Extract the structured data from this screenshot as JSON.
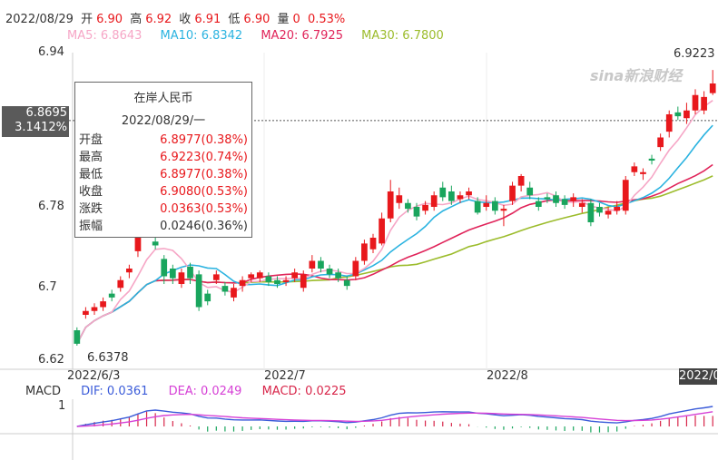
{
  "header": {
    "date": "2022/08/29",
    "open_label": "开",
    "open": "6.90",
    "high_label": "高",
    "high": "6.92",
    "close_label": "收",
    "close": "6.91",
    "low_label": "低",
    "low": "6.90",
    "vol_label": "量",
    "vol": "0",
    "change": "0.53%"
  },
  "ma": {
    "ma5": "MA5: 6.8643",
    "ma10": "MA10: 6.8342",
    "ma20": "MA20: 6.7925",
    "ma30": "MA30: 6.7800",
    "colors": {
      "ma5": "#f6a6c6",
      "ma10": "#2bb3e0",
      "ma20": "#e0245a",
      "ma30": "#9cbc2c"
    }
  },
  "watermark": "sina新浪财经",
  "crosshair": {
    "price": "6.8695",
    "pct": "3.1412%"
  },
  "tooltip": {
    "title": "在岸人民币",
    "date": "2022/08/29/一",
    "rows": [
      {
        "label": "开盘",
        "value": "6.8977(0.38%)",
        "red": true
      },
      {
        "label": "最高",
        "value": "6.9223(0.74%)",
        "red": true
      },
      {
        "label": "最低",
        "value": "6.8977(0.38%)",
        "red": true
      },
      {
        "label": "收盘",
        "value": "6.9080(0.53%)",
        "red": true
      },
      {
        "label": "涨跌",
        "value": "0.0363(0.53%)",
        "red": true
      },
      {
        "label": "振幅",
        "value": "0.0246(0.36%)",
        "red": false
      }
    ]
  },
  "macd": {
    "label": "MACD",
    "dif": "DIF: 0.0361",
    "dea": "DEA: 0.0249",
    "macd": "MACD: 0.0225",
    "colors": {
      "dif": "#3a5bd9",
      "dea": "#d640d6",
      "macd": "#d8264a"
    }
  },
  "date_box": "2022/0",
  "chart_data": {
    "type": "candlestick",
    "title": "",
    "ylim": [
      6.62,
      6.94
    ],
    "yticks": [
      "6.94",
      "6.78",
      "6.7",
      "6.62"
    ],
    "xticks": [
      "2022/6/3",
      "2022/7",
      "2022/8"
    ],
    "annotations": {
      "high": "6.9223",
      "low": "6.6378"
    },
    "macd_axis": [
      "1"
    ],
    "candles": [
      [
        6.652,
        6.638,
        6.655,
        6.636
      ],
      [
        6.668,
        6.672,
        6.676,
        6.664
      ],
      [
        6.672,
        6.676,
        6.68,
        6.668
      ],
      [
        6.676,
        6.682,
        6.686,
        6.672
      ],
      [
        6.69,
        6.686,
        6.694,
        6.682
      ],
      [
        6.696,
        6.704,
        6.708,
        6.692
      ],
      [
        6.712,
        6.716,
        6.72,
        6.706
      ],
      [
        6.734,
        6.754,
        6.76,
        6.728
      ],
      [
        6.758,
        6.766,
        6.778,
        6.752
      ],
      [
        6.744,
        6.74,
        6.748,
        6.736
      ],
      [
        6.726,
        6.708,
        6.73,
        6.7
      ],
      [
        6.716,
        6.706,
        6.72,
        6.7
      ],
      [
        6.7,
        6.712,
        6.716,
        6.696
      ],
      [
        6.718,
        6.706,
        6.722,
        6.7
      ],
      [
        6.71,
        6.676,
        6.714,
        6.672
      ],
      [
        6.69,
        6.682,
        6.694,
        6.678
      ],
      [
        6.704,
        6.71,
        6.714,
        6.7
      ],
      [
        6.698,
        6.692,
        6.702,
        6.688
      ],
      [
        6.686,
        6.696,
        6.7,
        6.682
      ],
      [
        6.698,
        6.704,
        6.708,
        6.692
      ],
      [
        6.706,
        6.71,
        6.712,
        6.702
      ],
      [
        6.706,
        6.712,
        6.714,
        6.702
      ],
      [
        6.708,
        6.702,
        6.712,
        6.698
      ],
      [
        6.704,
        6.7,
        6.708,
        6.696
      ],
      [
        6.702,
        6.704,
        6.708,
        6.698
      ],
      [
        6.706,
        6.712,
        6.716,
        6.702
      ],
      [
        6.696,
        6.71,
        6.714,
        6.692
      ],
      [
        6.716,
        6.724,
        6.73,
        6.712
      ],
      [
        6.724,
        6.716,
        6.728,
        6.712
      ],
      [
        6.716,
        6.71,
        6.72,
        6.706
      ],
      [
        6.712,
        6.706,
        6.716,
        6.702
      ],
      [
        6.704,
        6.698,
        6.708,
        6.694
      ],
      [
        6.708,
        6.724,
        6.728,
        6.704
      ],
      [
        6.724,
        6.742,
        6.746,
        6.72
      ],
      [
        6.736,
        6.748,
        6.752,
        6.732
      ],
      [
        6.742,
        6.768,
        6.774,
        6.74
      ],
      [
        6.768,
        6.796,
        6.808,
        6.764
      ],
      [
        6.784,
        6.792,
        6.8,
        6.778
      ],
      [
        6.784,
        6.778,
        6.788,
        6.774
      ],
      [
        6.78,
        6.77,
        6.784,
        6.766
      ],
      [
        6.776,
        6.782,
        6.786,
        6.772
      ],
      [
        6.78,
        6.792,
        6.796,
        6.776
      ],
      [
        6.8,
        6.79,
        6.806,
        6.786
      ],
      [
        6.796,
        6.786,
        6.802,
        6.782
      ],
      [
        6.788,
        6.792,
        6.796,
        6.784
      ],
      [
        6.792,
        6.796,
        6.8,
        6.788
      ],
      [
        6.786,
        6.774,
        6.79,
        6.772
      ],
      [
        6.78,
        6.784,
        6.792,
        6.776
      ],
      [
        6.786,
        6.776,
        6.79,
        6.772
      ],
      [
        6.776,
        6.778,
        6.782,
        6.76
      ],
      [
        6.786,
        6.802,
        6.806,
        6.782
      ],
      [
        6.802,
        6.812,
        6.814,
        6.796
      ],
      [
        6.8,
        6.792,
        6.806,
        6.788
      ],
      [
        6.786,
        6.78,
        6.79,
        6.776
      ],
      [
        6.79,
        6.788,
        6.794,
        6.784
      ],
      [
        6.792,
        6.784,
        6.796,
        6.78
      ],
      [
        6.788,
        6.782,
        6.792,
        6.778
      ],
      [
        6.786,
        6.79,
        6.794,
        6.78
      ],
      [
        6.78,
        6.784,
        6.788,
        6.774
      ],
      [
        6.784,
        6.764,
        6.788,
        6.76
      ],
      [
        6.78,
        6.774,
        6.784,
        6.77
      ],
      [
        6.772,
        6.776,
        6.78,
        6.768
      ],
      [
        6.776,
        6.78,
        6.786,
        6.772
      ],
      [
        6.776,
        6.808,
        6.812,
        6.772
      ],
      [
        6.816,
        6.822,
        6.826,
        6.812
      ],
      [
        6.814,
        6.816,
        6.82,
        6.808
      ],
      [
        6.83,
        6.828,
        6.834,
        6.824
      ],
      [
        6.842,
        6.852,
        6.856,
        6.838
      ],
      [
        6.858,
        6.876,
        6.88,
        6.852
      ],
      [
        6.878,
        6.874,
        6.884,
        6.87
      ],
      [
        6.872,
        6.88,
        6.888,
        6.866
      ],
      [
        6.88,
        6.896,
        6.902,
        6.876
      ],
      [
        6.88,
        6.894,
        6.9,
        6.876
      ],
      [
        6.898,
        6.908,
        6.922,
        6.896
      ]
    ]
  }
}
